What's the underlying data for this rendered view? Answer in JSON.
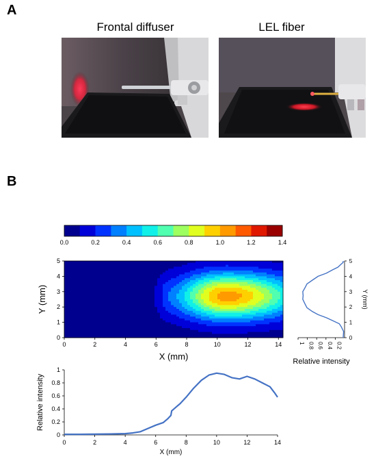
{
  "panel_a": {
    "letter": "A",
    "photos": [
      {
        "title": "Frontal diffuser"
      },
      {
        "title": "LEL fiber"
      }
    ]
  },
  "panel_b": {
    "letter": "B"
  },
  "colors": {
    "heatmap": [
      "#00008f",
      "#0000d9",
      "#0033ff",
      "#0080ff",
      "#00c0ff",
      "#10f0e8",
      "#50ffb0",
      "#9dff60",
      "#e0ff20",
      "#ffd000",
      "#ff9a00",
      "#ff5a00",
      "#e01800",
      "#9a0000"
    ],
    "line": "#4472c4"
  },
  "chart_data": [
    {
      "type": "heatmap",
      "name": "colorbar",
      "range": [
        0.0,
        1.4
      ],
      "tick_labels": [
        "0.0",
        "0.2",
        "0.4",
        "0.6",
        "0.8",
        "1.0",
        "1.2",
        "1.4"
      ]
    },
    {
      "type": "heatmap",
      "name": "intensity-map",
      "xlabel": "X (mm)",
      "ylabel": "Y (mm)",
      "xlim": [
        0,
        14.3
      ],
      "ylim": [
        0,
        5
      ],
      "xticks": [
        "0",
        "2",
        "4",
        "6",
        "8",
        "10",
        "12",
        "14"
      ],
      "yticks": [
        "0",
        "1",
        "2",
        "3",
        "4",
        "5"
      ],
      "spot": {
        "center_x": 10.6,
        "center_y": 2.7,
        "sigma_x_rising": 2.0,
        "sigma_x_falling": 3.0,
        "sigma_y": 1.05,
        "onset_x": 5.6,
        "peak": 0.9
      }
    },
    {
      "type": "line",
      "name": "y-profile",
      "xlabel": "Relative intensity",
      "ylabel": "Y (mm)",
      "xlim": [
        1,
        0
      ],
      "ylim": [
        0,
        5
      ],
      "xticks": [
        "1",
        "0.8",
        "0.6",
        "0.4",
        "0.2"
      ],
      "yticks": [
        "0",
        "1",
        "2",
        "3",
        "4",
        "5"
      ],
      "x": [
        0.02,
        0.03,
        0.06,
        0.12,
        0.24,
        0.4,
        0.56,
        0.7,
        0.8,
        0.86,
        0.89,
        0.9,
        0.89,
        0.86,
        0.8,
        0.7,
        0.56,
        0.4,
        0.26,
        0.15,
        0.08,
        0.04,
        0.02
      ],
      "y": [
        0.0,
        0.4,
        0.7,
        0.9,
        1.1,
        1.3,
        1.5,
        1.7,
        1.95,
        2.2,
        2.5,
        2.75,
        3.0,
        3.25,
        3.5,
        3.75,
        4.0,
        4.2,
        4.4,
        4.6,
        4.75,
        4.9,
        5.0
      ]
    },
    {
      "type": "line",
      "name": "x-profile",
      "xlabel": "X (mm)",
      "ylabel": "Relative intensity",
      "xlim": [
        0,
        14
      ],
      "ylim": [
        0,
        1
      ],
      "xticks": [
        "0",
        "2",
        "4",
        "6",
        "8",
        "10",
        "12",
        "14"
      ],
      "yticks": [
        "0",
        "0.2",
        "0.4",
        "0.6",
        "0.8",
        "1"
      ],
      "x": [
        0,
        1,
        2,
        3,
        4,
        4.5,
        5,
        5.5,
        6,
        6.5,
        6.8,
        7.0,
        7.05,
        7.3,
        7.6,
        8,
        8.5,
        9,
        9.5,
        10,
        10.5,
        11,
        11.5,
        12,
        12.5,
        13,
        13.5,
        13.8,
        14
      ],
      "y": [
        0.01,
        0.01,
        0.012,
        0.015,
        0.02,
        0.03,
        0.05,
        0.1,
        0.15,
        0.19,
        0.25,
        0.3,
        0.37,
        0.42,
        0.48,
        0.58,
        0.72,
        0.84,
        0.92,
        0.95,
        0.93,
        0.88,
        0.86,
        0.9,
        0.86,
        0.8,
        0.74,
        0.65,
        0.58
      ]
    }
  ]
}
